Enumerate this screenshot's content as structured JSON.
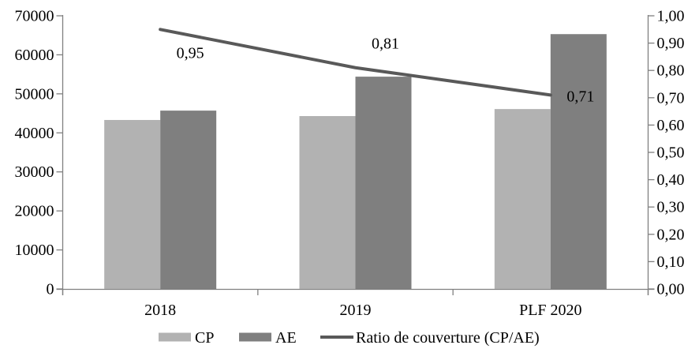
{
  "chart_data": {
    "type": "bar",
    "subtype": "combo bar + line, dual axis",
    "title": "",
    "categories": [
      "2018",
      "2019",
      "PLF 2020"
    ],
    "series": [
      {
        "name": "CP",
        "values": [
          43300,
          44300,
          46100
        ],
        "color": "#b2b2b2",
        "axis": "left"
      },
      {
        "name": "AE",
        "values": [
          45700,
          54400,
          65300
        ],
        "color": "#7f7f7f",
        "axis": "left"
      }
    ],
    "line_series": {
      "name": "Ratio de couverture (CP/AE)",
      "values": [
        0.95,
        0.81,
        0.71
      ],
      "labels": [
        "0,95",
        "0,81",
        "0,71"
      ],
      "label_positions": [
        "below",
        "above",
        "right"
      ],
      "color": "#595959",
      "axis": "right"
    },
    "left_axis": {
      "min": 0,
      "max": 70000,
      "step": 10000,
      "tick_labels": [
        "0",
        "10000",
        "20000",
        "30000",
        "40000",
        "50000",
        "60000",
        "70000"
      ]
    },
    "right_axis": {
      "min": 0,
      "max": 1.0,
      "step": 0.1,
      "tick_labels": [
        "0,00",
        "0,10",
        "0,20",
        "0,30",
        "0,40",
        "0,50",
        "0,60",
        "0,70",
        "0,80",
        "0,90",
        "1,00"
      ]
    },
    "grid": false,
    "legend_position": "bottom",
    "axis_color": "#808080",
    "text_color": "#000000",
    "background_color": "#ffffff"
  }
}
